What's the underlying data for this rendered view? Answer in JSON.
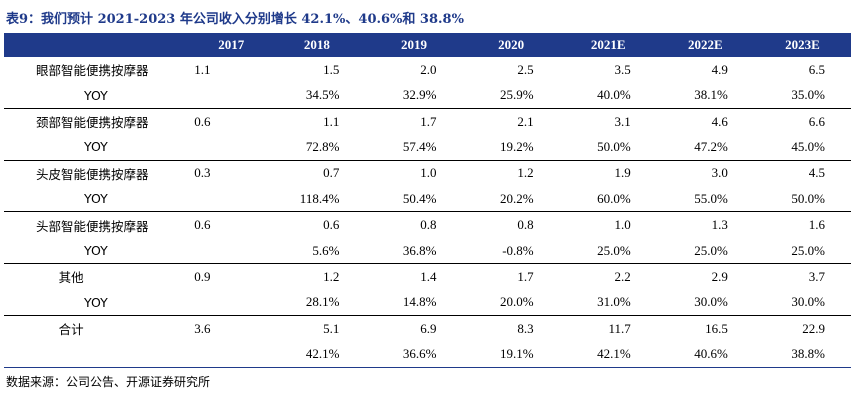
{
  "title": "表9：我们预计 2021-2023 年公司收入分别增长 42.1%、40.6%和 38.8%",
  "header": [
    "",
    "2017",
    "2018",
    "2019",
    "2020",
    "2021E",
    "2022E",
    "2023E"
  ],
  "rows": [
    {
      "label": "眼部智能便携按摩器",
      "values": [
        "1.1",
        "1.5",
        "2.0",
        "2.5",
        "3.5",
        "4.9",
        "6.5"
      ]
    },
    {
      "label": "YOY",
      "values": [
        "",
        "34.5%",
        "32.9%",
        "25.9%",
        "40.0%",
        "38.1%",
        "35.0%"
      ]
    },
    {
      "label": "颈部智能便携按摩器",
      "values": [
        "0.6",
        "1.1",
        "1.7",
        "2.1",
        "3.1",
        "4.6",
        "6.6"
      ]
    },
    {
      "label": "YOY",
      "values": [
        "",
        "72.8%",
        "57.4%",
        "19.2%",
        "50.0%",
        "47.2%",
        "45.0%"
      ]
    },
    {
      "label": "头皮智能便携按摩器",
      "values": [
        "0.3",
        "0.7",
        "1.0",
        "1.2",
        "1.9",
        "3.0",
        "4.5"
      ]
    },
    {
      "label": "YOY",
      "values": [
        "",
        "118.4%",
        "50.4%",
        "20.2%",
        "60.0%",
        "55.0%",
        "50.0%"
      ]
    },
    {
      "label": "头部智能便携按摩器",
      "values": [
        "0.6",
        "0.6",
        "0.8",
        "0.8",
        "1.0",
        "1.3",
        "1.6"
      ]
    },
    {
      "label": "YOY",
      "values": [
        "",
        "5.6%",
        "36.8%",
        "-0.8%",
        "25.0%",
        "25.0%",
        "25.0%"
      ]
    },
    {
      "label": "其他",
      "values": [
        "0.9",
        "1.2",
        "1.4",
        "1.7",
        "2.2",
        "2.9",
        "3.7"
      ]
    },
    {
      "label": "YOY",
      "values": [
        "",
        "28.1%",
        "14.8%",
        "20.0%",
        "31.0%",
        "30.0%",
        "30.0%"
      ]
    },
    {
      "label": "合计",
      "values": [
        "3.6",
        "5.1",
        "6.9",
        "8.3",
        "11.7",
        "16.5",
        "22.9"
      ]
    },
    {
      "label": "",
      "values": [
        "",
        "42.1%",
        "36.6%",
        "19.1%",
        "42.1%",
        "40.6%",
        "38.8%"
      ]
    }
  ],
  "source": "数据来源：公司公告、开源证券研究所",
  "colors": {
    "header_bg": "#1f3a8a",
    "title": "#1f3a8a"
  }
}
